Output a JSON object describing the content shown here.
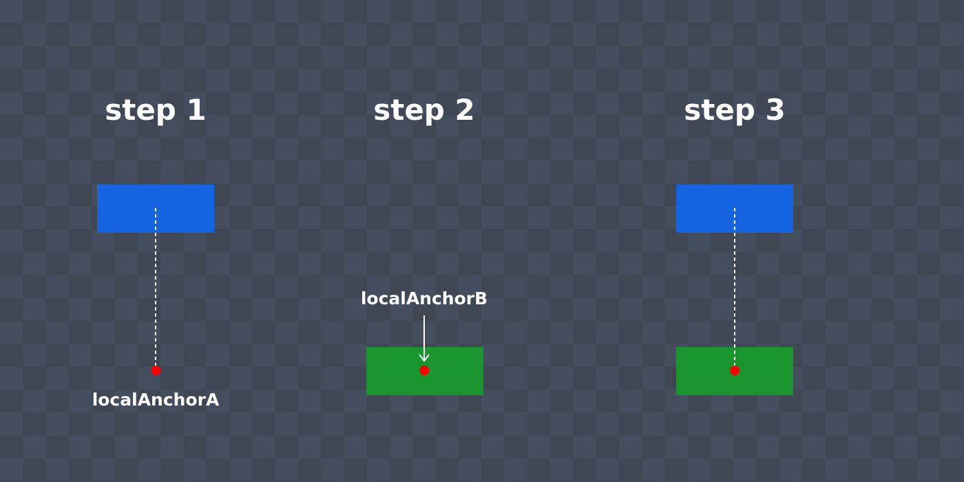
{
  "steps": [
    {
      "title": "step 1",
      "label": "localAnchorA"
    },
    {
      "title": "step 2",
      "label": "localAnchorB"
    },
    {
      "title": "step 3"
    }
  ],
  "colors": {
    "body_a": "#1565e3",
    "body_b": "#1a942e",
    "anchor": "#ff0000",
    "text": "#ffffff"
  }
}
